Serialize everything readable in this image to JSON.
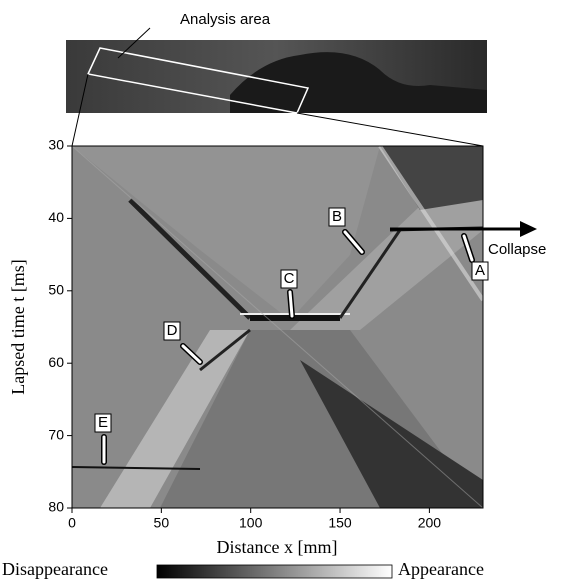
{
  "chart_data": {
    "type": "image",
    "xlabel": "Distance x [mm]",
    "ylabel": "Lapsed time t [ms]",
    "xlim": [
      0,
      230
    ],
    "xticks": [
      0,
      50,
      100,
      150,
      200
    ],
    "ylim": [
      30,
      80
    ],
    "yticks": [
      30,
      40,
      50,
      60,
      70,
      80
    ],
    "annotations": [
      "Analysis area",
      "A",
      "B",
      "C",
      "D",
      "E",
      "Collapse"
    ],
    "colorbar_labels": [
      "Disappearance",
      "Appearance"
    ]
  }
}
